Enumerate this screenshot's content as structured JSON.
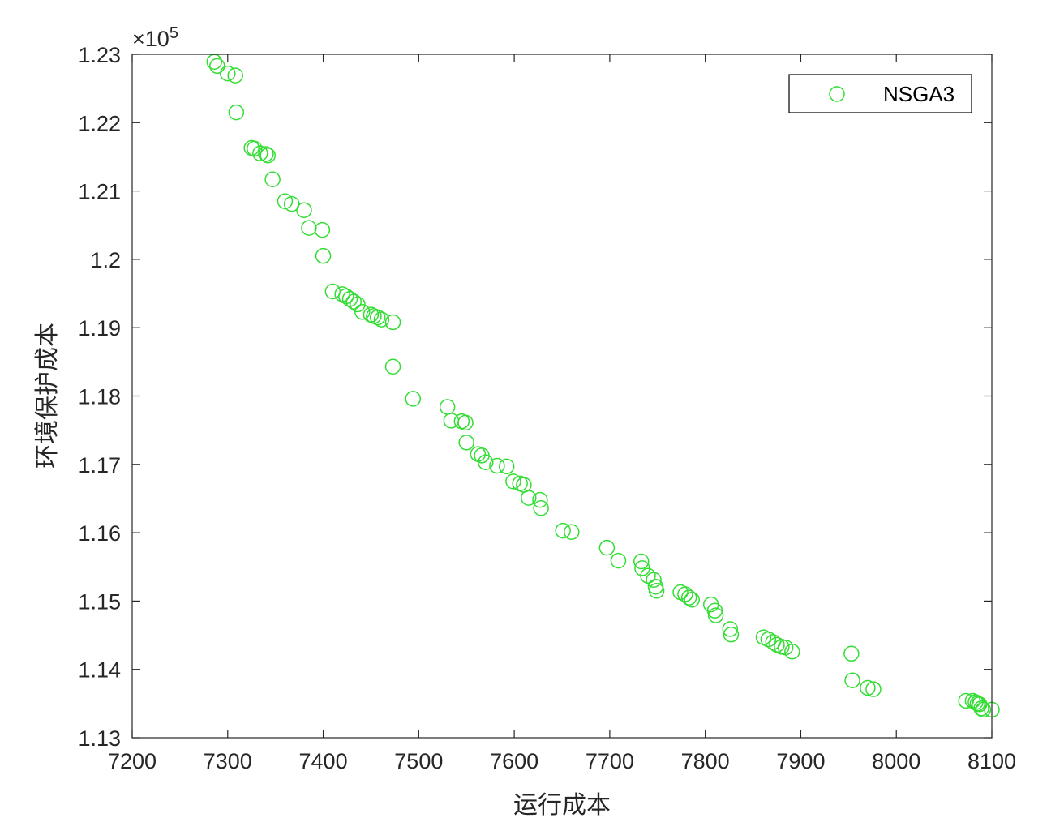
{
  "chart_data": {
    "type": "scatter",
    "title": "",
    "xlabel": "运行成本",
    "ylabel": "环境保护成本",
    "xlim": [
      7200,
      8100
    ],
    "ylim": [
      1.13,
      1.23
    ],
    "y_exponent_label": {
      "base": "×10",
      "exp": "5"
    },
    "xticks": [
      7200,
      7300,
      7400,
      7500,
      7600,
      7700,
      7800,
      7900,
      8000,
      8100
    ],
    "xtick_labels": [
      "7200",
      "7300",
      "7400",
      "7500",
      "7600",
      "7700",
      "7800",
      "7900",
      "8000",
      "8100"
    ],
    "yticks": [
      1.13,
      1.14,
      1.15,
      1.16,
      1.17,
      1.18,
      1.19,
      1.2,
      1.21,
      1.22,
      1.23
    ],
    "ytick_labels": [
      "1.13",
      "1.14",
      "1.15",
      "1.16",
      "1.17",
      "1.18",
      "1.19",
      "1.2",
      "1.21",
      "1.22",
      "1.23"
    ],
    "grid": false,
    "legend_position": "top-right",
    "marker": "open-circle",
    "series": [
      {
        "name": "NSGA3",
        "color": "#33dd33",
        "x": [
          7286,
          7289,
          7300,
          7308,
          7309,
          7325,
          7328,
          7334,
          7340,
          7342,
          7347,
          7360,
          7367,
          7380,
          7385,
          7399,
          7400,
          7410,
          7420,
          7424,
          7428,
          7432,
          7436,
          7441,
          7450,
          7453,
          7457,
          7461,
          7473,
          7473,
          7494,
          7530,
          7534,
          7545,
          7549,
          7550,
          7562,
          7566,
          7570,
          7582,
          7592,
          7599,
          7606,
          7610,
          7615,
          7627,
          7628,
          7651,
          7660,
          7697,
          7709,
          7733,
          7734,
          7740,
          7746,
          7748,
          7749,
          7774,
          7779,
          7783,
          7786,
          7806,
          7810,
          7811,
          7826,
          7827,
          7861,
          7866,
          7871,
          7875,
          7880,
          7884,
          7891,
          7953,
          7954,
          7970,
          7976,
          8073,
          8080,
          8083,
          8085,
          8087,
          8089,
          8091,
          8100
        ],
        "y": [
          1.2289,
          1.2283,
          1.2272,
          1.2269,
          1.2215,
          1.2163,
          1.2162,
          1.2155,
          1.2154,
          1.2152,
          1.2117,
          1.2085,
          1.2081,
          1.2072,
          1.2046,
          1.2043,
          1.2005,
          1.1953,
          1.1949,
          1.1946,
          1.1942,
          1.1938,
          1.1934,
          1.1923,
          1.1919,
          1.1917,
          1.1915,
          1.1912,
          1.1908,
          1.1843,
          1.1796,
          1.1784,
          1.1764,
          1.1763,
          1.1761,
          1.1732,
          1.1715,
          1.1713,
          1.1703,
          1.1698,
          1.1697,
          1.1675,
          1.1672,
          1.167,
          1.1651,
          1.1648,
          1.1636,
          1.1603,
          1.1601,
          1.1578,
          1.1559,
          1.1558,
          1.1548,
          1.1537,
          1.1531,
          1.1521,
          1.1515,
          1.1513,
          1.151,
          1.1505,
          1.1502,
          1.1495,
          1.1486,
          1.1479,
          1.1459,
          1.1451,
          1.1447,
          1.1444,
          1.144,
          1.1436,
          1.1433,
          1.1432,
          1.1426,
          1.1423,
          1.1384,
          1.1373,
          1.1371,
          1.1354,
          1.1354,
          1.1352,
          1.135,
          1.1349,
          1.1343,
          1.1341,
          1.1341
        ]
      }
    ]
  }
}
